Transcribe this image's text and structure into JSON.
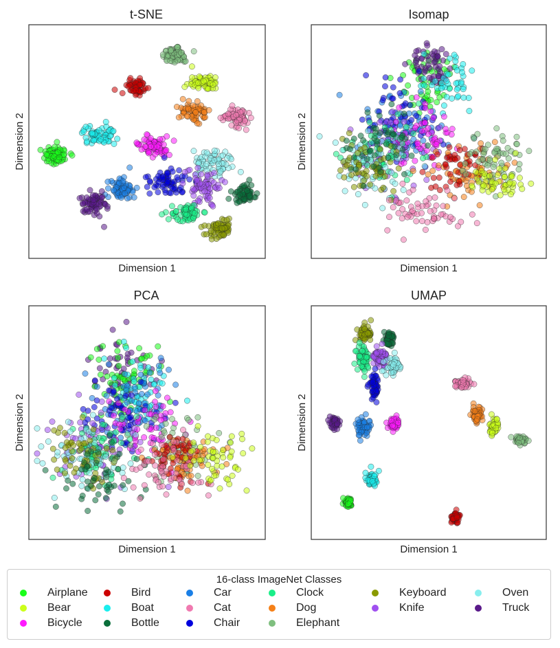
{
  "chart_data": [
    {
      "type": "scatter",
      "title": "t-SNE",
      "xlabel": "Dimension 1",
      "ylabel": "Dimension 2",
      "clusters": [
        {
          "class": "Elephant",
          "center": [
            0.63,
            0.1
          ],
          "spread": [
            0.05,
            0.035
          ],
          "count": 70
        },
        {
          "class": "Bird",
          "center": [
            0.45,
            0.25
          ],
          "spread": [
            0.04,
            0.04
          ],
          "count": 55
        },
        {
          "class": "Bear",
          "center": [
            0.76,
            0.23
          ],
          "spread": [
            0.06,
            0.03
          ],
          "count": 65
        },
        {
          "class": "Dog",
          "center": [
            0.71,
            0.36
          ],
          "spread": [
            0.05,
            0.04
          ],
          "count": 65
        },
        {
          "class": "Cat",
          "center": [
            0.91,
            0.39
          ],
          "spread": [
            0.05,
            0.04
          ],
          "count": 65
        },
        {
          "class": "Boat",
          "center": [
            0.28,
            0.47
          ],
          "spread": [
            0.06,
            0.035
          ],
          "count": 65
        },
        {
          "class": "Bicycle",
          "center": [
            0.53,
            0.52
          ],
          "spread": [
            0.055,
            0.035
          ],
          "count": 65
        },
        {
          "class": "Airplane",
          "center": [
            0.09,
            0.56
          ],
          "spread": [
            0.06,
            0.035
          ],
          "count": 70
        },
        {
          "class": "Oven",
          "center": [
            0.8,
            0.6
          ],
          "spread": [
            0.07,
            0.05
          ],
          "count": 70
        },
        {
          "class": "Chair",
          "center": [
            0.6,
            0.69
          ],
          "spread": [
            0.07,
            0.05
          ],
          "count": 65
        },
        {
          "class": "Car",
          "center": [
            0.38,
            0.71
          ],
          "spread": [
            0.05,
            0.05
          ],
          "count": 65
        },
        {
          "class": "Knife",
          "center": [
            0.76,
            0.71
          ],
          "spread": [
            0.07,
            0.06
          ],
          "count": 70
        },
        {
          "class": "Bottle",
          "center": [
            0.94,
            0.74
          ],
          "spread": [
            0.045,
            0.04
          ],
          "count": 60
        },
        {
          "class": "Truck",
          "center": [
            0.26,
            0.79
          ],
          "spread": [
            0.045,
            0.05
          ],
          "count": 65
        },
        {
          "class": "Clock",
          "center": [
            0.68,
            0.83
          ],
          "spread": [
            0.06,
            0.035
          ],
          "count": 65
        },
        {
          "class": "Keyboard",
          "center": [
            0.83,
            0.9
          ],
          "spread": [
            0.05,
            0.04
          ],
          "count": 65
        }
      ]
    },
    {
      "type": "scatter",
      "title": "Isomap",
      "xlabel": "Dimension 1",
      "ylabel": "Dimension 2",
      "clusters": [
        {
          "class": "Airplane",
          "center": [
            0.5,
            0.22
          ],
          "spread": [
            0.12,
            0.12
          ],
          "count": 55
        },
        {
          "class": "Truck",
          "center": [
            0.52,
            0.15
          ],
          "spread": [
            0.08,
            0.08
          ],
          "count": 55
        },
        {
          "class": "Boat",
          "center": [
            0.6,
            0.24
          ],
          "spread": [
            0.1,
            0.1
          ],
          "count": 45
        },
        {
          "class": "Car",
          "center": [
            0.4,
            0.45
          ],
          "spread": [
            0.16,
            0.13
          ],
          "count": 70
        },
        {
          "class": "Chair",
          "center": [
            0.38,
            0.4
          ],
          "spread": [
            0.16,
            0.14
          ],
          "count": 60
        },
        {
          "class": "Knife",
          "center": [
            0.33,
            0.55
          ],
          "spread": [
            0.16,
            0.15
          ],
          "count": 60
        },
        {
          "class": "Bicycle",
          "center": [
            0.48,
            0.48
          ],
          "spread": [
            0.14,
            0.13
          ],
          "count": 55
        },
        {
          "class": "Clock",
          "center": [
            0.28,
            0.55
          ],
          "spread": [
            0.14,
            0.13
          ],
          "count": 60
        },
        {
          "class": "Oven",
          "center": [
            0.24,
            0.62
          ],
          "spread": [
            0.14,
            0.13
          ],
          "count": 60
        },
        {
          "class": "Keyboard",
          "center": [
            0.22,
            0.62
          ],
          "spread": [
            0.12,
            0.1
          ],
          "count": 55
        },
        {
          "class": "Bottle",
          "center": [
            0.28,
            0.52
          ],
          "spread": [
            0.14,
            0.13
          ],
          "count": 45
        },
        {
          "class": "Dog",
          "center": [
            0.68,
            0.65
          ],
          "spread": [
            0.14,
            0.1
          ],
          "count": 70
        },
        {
          "class": "Bird",
          "center": [
            0.62,
            0.62
          ],
          "spread": [
            0.12,
            0.1
          ],
          "count": 45
        },
        {
          "class": "Elephant",
          "center": [
            0.8,
            0.58
          ],
          "spread": [
            0.12,
            0.1
          ],
          "count": 60
        },
        {
          "class": "Bear",
          "center": [
            0.82,
            0.68
          ],
          "spread": [
            0.1,
            0.08
          ],
          "count": 55
        },
        {
          "class": "Cat",
          "center": [
            0.48,
            0.82
          ],
          "spread": [
            0.14,
            0.08
          ],
          "count": 60
        }
      ]
    },
    {
      "type": "scatter",
      "title": "PCA",
      "xlabel": "Dimension 1",
      "ylabel": "Dimension 2",
      "clusters": [
        {
          "class": "Truck",
          "center": [
            0.4,
            0.28
          ],
          "spread": [
            0.12,
            0.14
          ],
          "count": 55
        },
        {
          "class": "Airplane",
          "center": [
            0.4,
            0.3
          ],
          "spread": [
            0.14,
            0.15
          ],
          "count": 60
        },
        {
          "class": "Boat",
          "center": [
            0.45,
            0.35
          ],
          "spread": [
            0.14,
            0.14
          ],
          "count": 55
        },
        {
          "class": "Car",
          "center": [
            0.46,
            0.42
          ],
          "spread": [
            0.15,
            0.14
          ],
          "count": 65
        },
        {
          "class": "Chair",
          "center": [
            0.38,
            0.48
          ],
          "spread": [
            0.16,
            0.14
          ],
          "count": 60
        },
        {
          "class": "Bicycle",
          "center": [
            0.5,
            0.52
          ],
          "spread": [
            0.14,
            0.12
          ],
          "count": 55
        },
        {
          "class": "Knife",
          "center": [
            0.25,
            0.6
          ],
          "spread": [
            0.16,
            0.15
          ],
          "count": 60
        },
        {
          "class": "Clock",
          "center": [
            0.28,
            0.62
          ],
          "spread": [
            0.16,
            0.14
          ],
          "count": 60
        },
        {
          "class": "Oven",
          "center": [
            0.22,
            0.66
          ],
          "spread": [
            0.15,
            0.13
          ],
          "count": 60
        },
        {
          "class": "Keyboard",
          "center": [
            0.2,
            0.65
          ],
          "spread": [
            0.15,
            0.12
          ],
          "count": 55
        },
        {
          "class": "Bottle",
          "center": [
            0.28,
            0.75
          ],
          "spread": [
            0.16,
            0.13
          ],
          "count": 50
        },
        {
          "class": "Elephant",
          "center": [
            0.65,
            0.62
          ],
          "spread": [
            0.18,
            0.12
          ],
          "count": 55
        },
        {
          "class": "Dog",
          "center": [
            0.66,
            0.66
          ],
          "spread": [
            0.14,
            0.1
          ],
          "count": 70
        },
        {
          "class": "Bird",
          "center": [
            0.64,
            0.66
          ],
          "spread": [
            0.12,
            0.09
          ],
          "count": 45
        },
        {
          "class": "Cat",
          "center": [
            0.58,
            0.72
          ],
          "spread": [
            0.16,
            0.1
          ],
          "count": 55
        },
        {
          "class": "Bear",
          "center": [
            0.8,
            0.66
          ],
          "spread": [
            0.14,
            0.09
          ],
          "count": 55
        }
      ]
    },
    {
      "type": "scatter",
      "title": "UMAP",
      "xlabel": "Dimension 1",
      "ylabel": "Dimension 2",
      "clusters": [
        {
          "class": "Keyboard",
          "center": [
            0.21,
            0.09
          ],
          "spread": [
            0.025,
            0.03
          ],
          "count": 55
        },
        {
          "class": "Bottle",
          "center": [
            0.32,
            0.11
          ],
          "spread": [
            0.02,
            0.025
          ],
          "count": 45
        },
        {
          "class": "Clock",
          "center": [
            0.2,
            0.2
          ],
          "spread": [
            0.025,
            0.05
          ],
          "count": 55
        },
        {
          "class": "Knife",
          "center": [
            0.28,
            0.2
          ],
          "spread": [
            0.03,
            0.04
          ],
          "count": 55
        },
        {
          "class": "Oven",
          "center": [
            0.34,
            0.24
          ],
          "spread": [
            0.03,
            0.03
          ],
          "count": 50
        },
        {
          "class": "Chair",
          "center": [
            0.25,
            0.33
          ],
          "spread": [
            0.02,
            0.05
          ],
          "count": 50
        },
        {
          "class": "Truck",
          "center": [
            0.07,
            0.5
          ],
          "spread": [
            0.015,
            0.02
          ],
          "count": 45
        },
        {
          "class": "Car",
          "center": [
            0.2,
            0.52
          ],
          "spread": [
            0.025,
            0.035
          ],
          "count": 55
        },
        {
          "class": "Bicycle",
          "center": [
            0.34,
            0.51
          ],
          "spread": [
            0.02,
            0.02
          ],
          "count": 50
        },
        {
          "class": "Boat",
          "center": [
            0.24,
            0.76
          ],
          "spread": [
            0.02,
            0.03
          ],
          "count": 50
        },
        {
          "class": "Airplane",
          "center": [
            0.13,
            0.87
          ],
          "spread": [
            0.015,
            0.015
          ],
          "count": 45
        },
        {
          "class": "Bird",
          "center": [
            0.62,
            0.94
          ],
          "spread": [
            0.015,
            0.02
          ],
          "count": 60
        },
        {
          "class": "Cat",
          "center": [
            0.66,
            0.32
          ],
          "spread": [
            0.03,
            0.02
          ],
          "count": 50
        },
        {
          "class": "Dog",
          "center": [
            0.72,
            0.46
          ],
          "spread": [
            0.02,
            0.03
          ],
          "count": 55
        },
        {
          "class": "Bear",
          "center": [
            0.8,
            0.52
          ],
          "spread": [
            0.015,
            0.035
          ],
          "count": 50
        },
        {
          "class": "Elephant",
          "center": [
            0.92,
            0.58
          ],
          "spread": [
            0.02,
            0.015
          ],
          "count": 50
        }
      ]
    }
  ],
  "legend": {
    "title": "16-class ImageNet Classes",
    "placement": "bottom-center",
    "columns": [
      [
        {
          "label": "Airplane",
          "color": "#1aff1a"
        },
        {
          "label": "Bear",
          "color": "#ccff1a"
        },
        {
          "label": "Bicycle",
          "color": "#ff1aff"
        }
      ],
      [
        {
          "label": "Bird",
          "color": "#cc0000"
        },
        {
          "label": "Boat",
          "color": "#1aeeee"
        },
        {
          "label": "Bottle",
          "color": "#0a6e3a"
        }
      ],
      [
        {
          "label": "Car",
          "color": "#1a7fe6"
        },
        {
          "label": "Cat",
          "color": "#f07ab0"
        },
        {
          "label": "Chair",
          "color": "#0000dd"
        }
      ],
      [
        {
          "label": "Clock",
          "color": "#1aee88"
        },
        {
          "label": "Dog",
          "color": "#f58018"
        },
        {
          "label": "Elephant",
          "color": "#7fbf7f"
        }
      ],
      [
        {
          "label": "Keyboard",
          "color": "#8a9a00"
        },
        {
          "label": "Knife",
          "color": "#a050f0"
        }
      ],
      [
        {
          "label": "Oven",
          "color": "#88eeee"
        },
        {
          "label": "Truck",
          "color": "#5a1a8a"
        }
      ]
    ]
  }
}
